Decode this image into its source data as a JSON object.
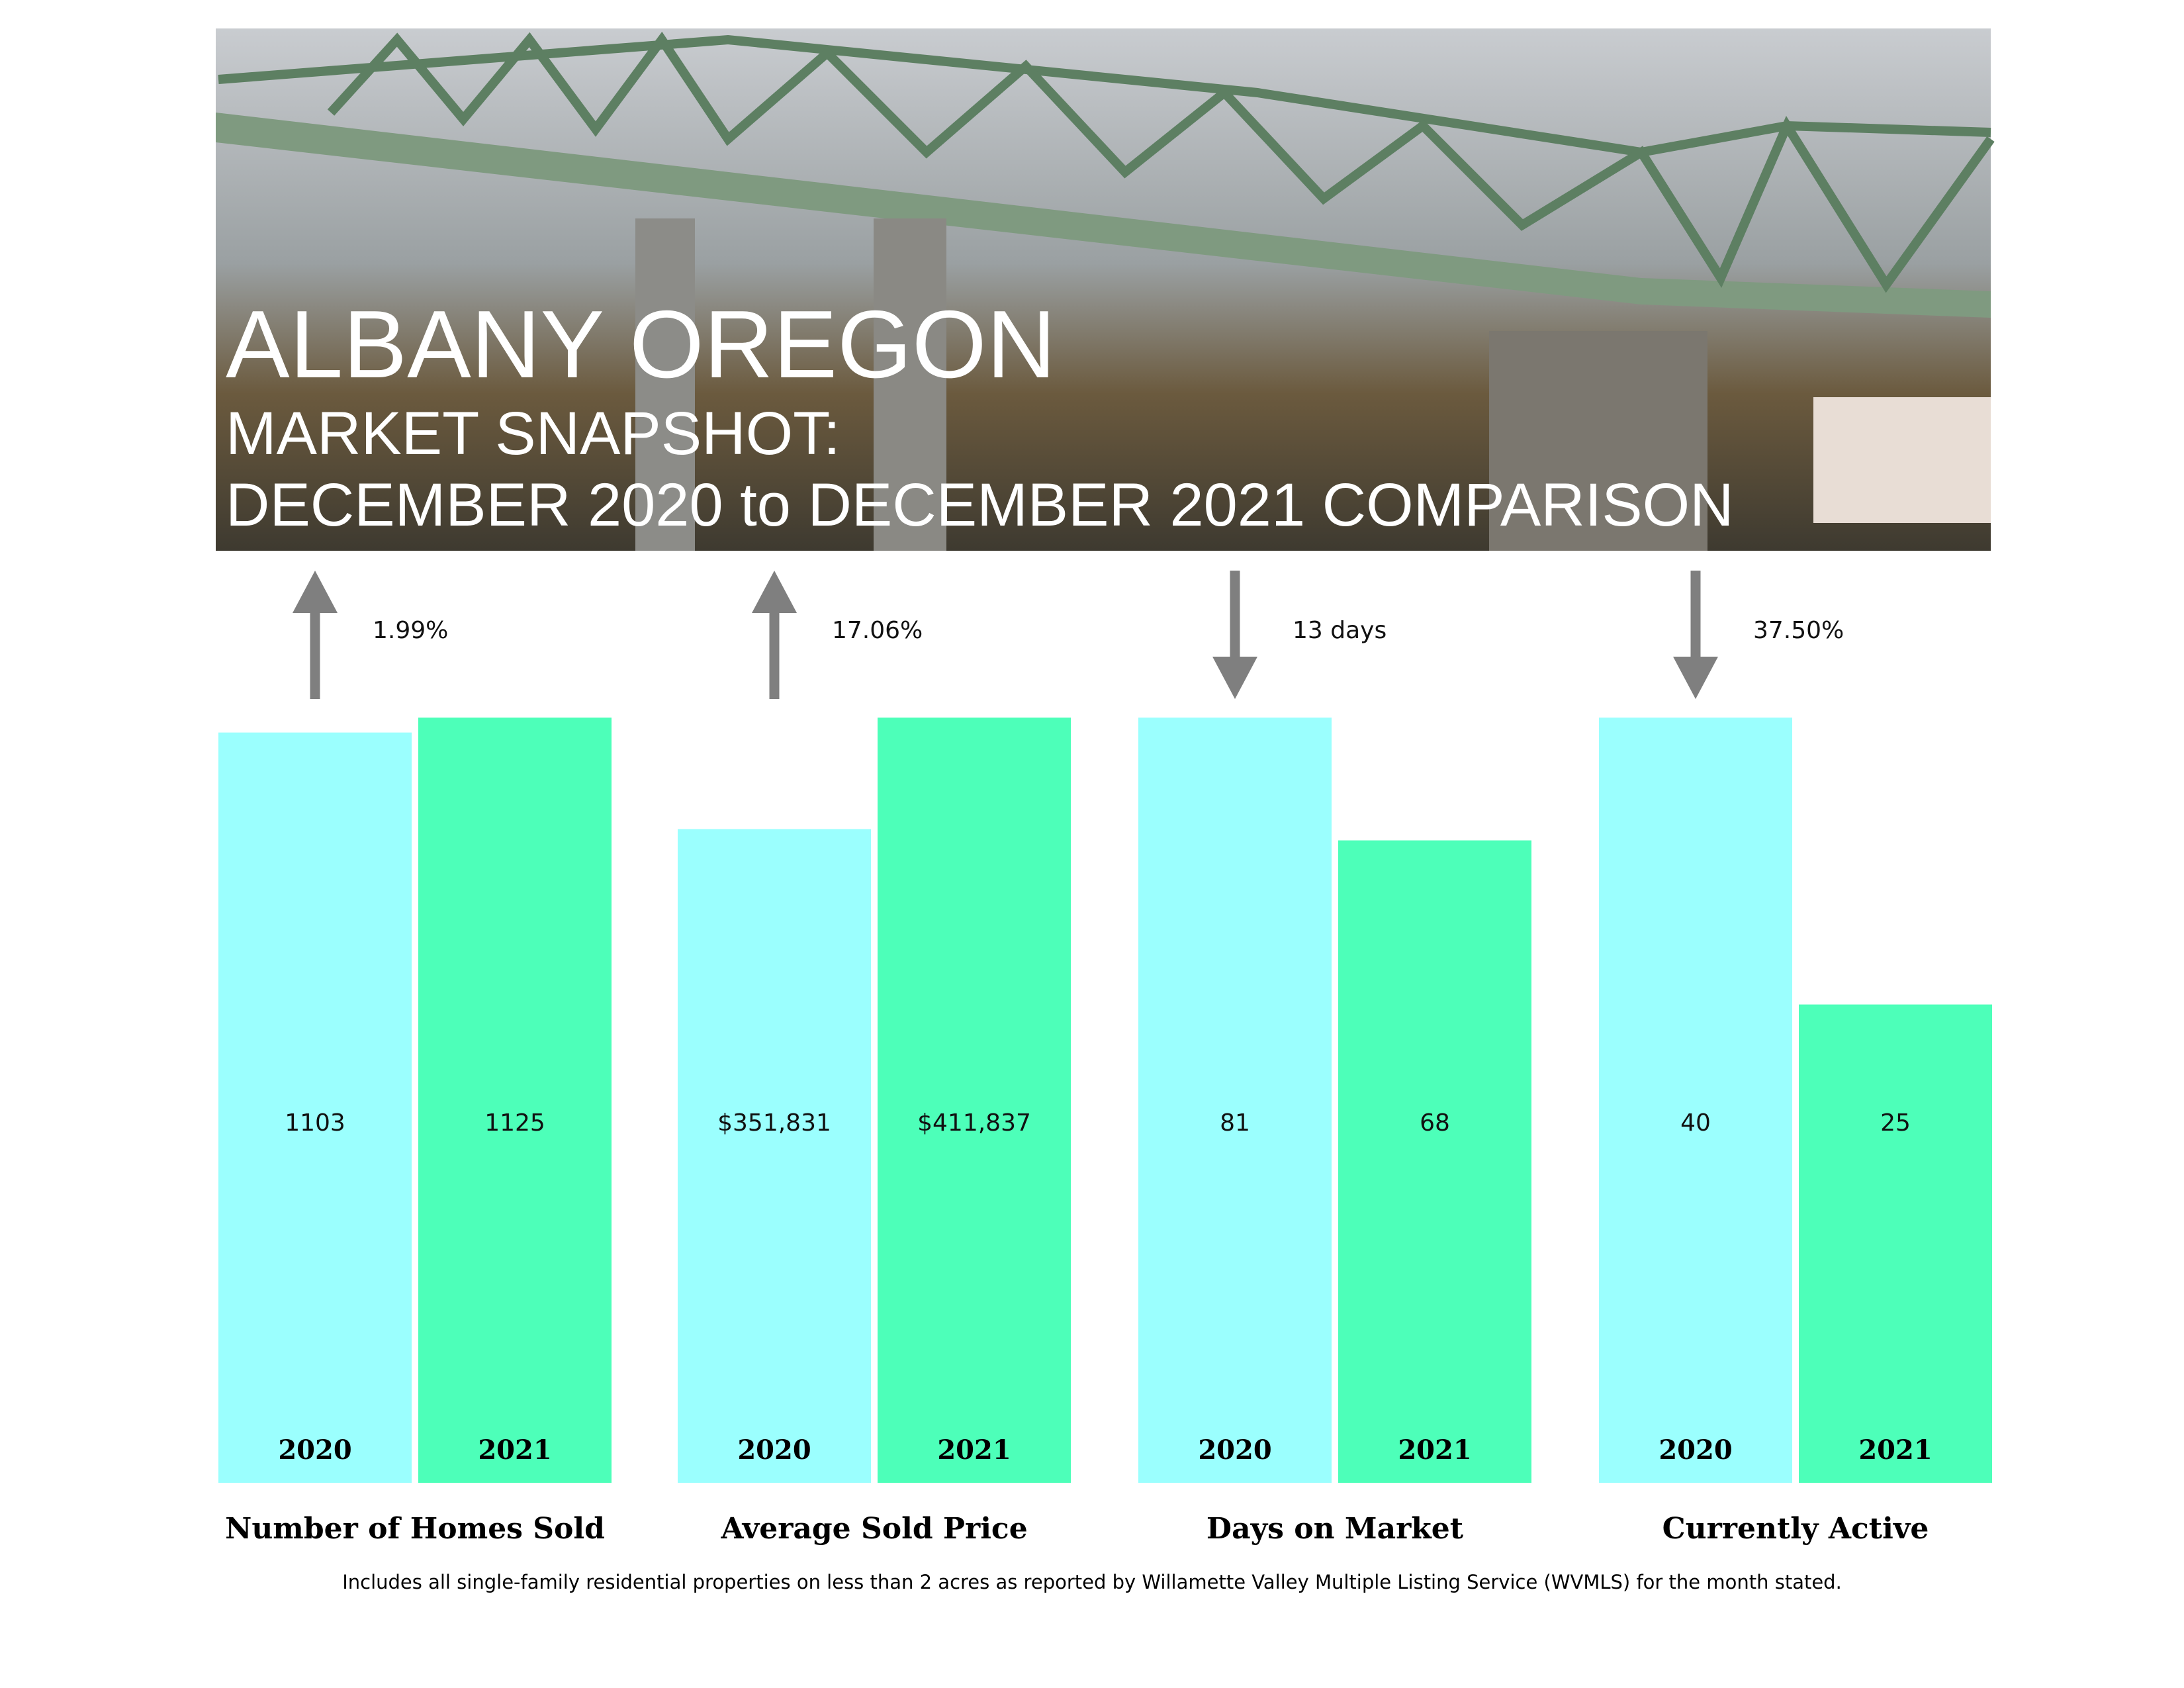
{
  "header": {
    "title": "ALBANY OREGON",
    "subtitle": "MARKET SNAPSHOT:",
    "subtitle2": "DECEMBER 2020 to DECEMBER 2021 COMPARISON"
  },
  "chart_data": [
    {
      "type": "bar",
      "title": "Number of Homes Sold",
      "categories": [
        "2020",
        "2021"
      ],
      "values": [
        1103,
        1125
      ],
      "colors": [
        "#9bfffe",
        "#4dffb9"
      ],
      "change": "1.99%",
      "direction": "up"
    },
    {
      "type": "bar",
      "title": "Average Sold Price",
      "categories": [
        "2020",
        "2021"
      ],
      "values": [
        351831,
        411837
      ],
      "value_labels": [
        "$351,831",
        "$411,837"
      ],
      "colors": [
        "#9bfffe",
        "#4dffb9"
      ],
      "change": "17.06%",
      "direction": "up"
    },
    {
      "type": "bar",
      "title": "Days on Market",
      "categories": [
        "2020",
        "2021"
      ],
      "values": [
        81,
        68
      ],
      "colors": [
        "#9bfffe",
        "#4dffb9"
      ],
      "change": "13 days",
      "direction": "down"
    },
    {
      "type": "bar",
      "title": "Currently Active",
      "categories": [
        "2020",
        "2021"
      ],
      "values": [
        40,
        25
      ],
      "colors": [
        "#9bfffe",
        "#4dffb9"
      ],
      "change": "37.50%",
      "direction": "down"
    }
  ],
  "footnote": "Includes all single-family residential properties on less than 2 acres as reported by Willamette Valley Multiple Listing Service (WVMLS) for the month stated."
}
